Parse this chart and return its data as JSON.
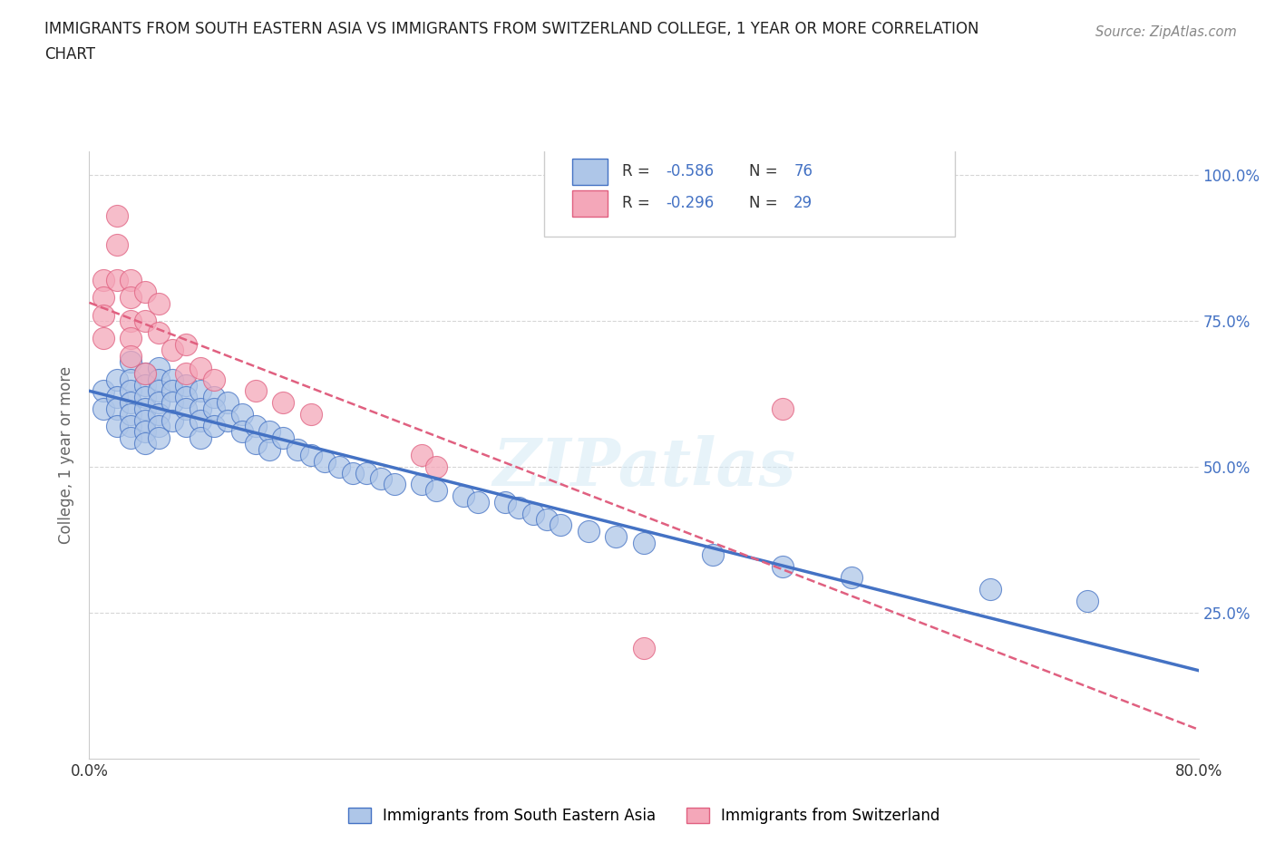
{
  "title_line1": "IMMIGRANTS FROM SOUTH EASTERN ASIA VS IMMIGRANTS FROM SWITZERLAND COLLEGE, 1 YEAR OR MORE CORRELATION",
  "title_line2": "CHART",
  "source_text": "Source: ZipAtlas.com",
  "ylabel": "College, 1 year or more",
  "xlim": [
    0.0,
    0.8
  ],
  "ylim": [
    0.0,
    1.04
  ],
  "blue_R": "-0.586",
  "blue_N": "76",
  "pink_R": "-0.296",
  "pink_N": "29",
  "legend_label_blue": "Immigrants from South Eastern Asia",
  "legend_label_pink": "Immigrants from Switzerland",
  "watermark": "ZIPatlas",
  "blue_color": "#aec6e8",
  "pink_color": "#f4a7b9",
  "blue_line_color": "#4472c4",
  "pink_line_color": "#e06080",
  "pink_line_dash": "dashed",
  "background_color": "#ffffff",
  "blue_scatter": {
    "x": [
      0.01,
      0.01,
      0.02,
      0.02,
      0.02,
      0.02,
      0.03,
      0.03,
      0.03,
      0.03,
      0.03,
      0.03,
      0.03,
      0.04,
      0.04,
      0.04,
      0.04,
      0.04,
      0.04,
      0.04,
      0.05,
      0.05,
      0.05,
      0.05,
      0.05,
      0.05,
      0.05,
      0.06,
      0.06,
      0.06,
      0.06,
      0.07,
      0.07,
      0.07,
      0.07,
      0.08,
      0.08,
      0.08,
      0.08,
      0.09,
      0.09,
      0.09,
      0.1,
      0.1,
      0.11,
      0.11,
      0.12,
      0.12,
      0.13,
      0.13,
      0.14,
      0.15,
      0.16,
      0.17,
      0.18,
      0.19,
      0.2,
      0.21,
      0.22,
      0.24,
      0.25,
      0.27,
      0.28,
      0.3,
      0.31,
      0.32,
      0.33,
      0.34,
      0.36,
      0.38,
      0.4,
      0.45,
      0.5,
      0.55,
      0.65,
      0.72
    ],
    "y": [
      0.63,
      0.6,
      0.65,
      0.62,
      0.6,
      0.57,
      0.68,
      0.65,
      0.63,
      0.61,
      0.59,
      0.57,
      0.55,
      0.66,
      0.64,
      0.62,
      0.6,
      0.58,
      0.56,
      0.54,
      0.67,
      0.65,
      0.63,
      0.61,
      0.59,
      0.57,
      0.55,
      0.65,
      0.63,
      0.61,
      0.58,
      0.64,
      0.62,
      0.6,
      0.57,
      0.63,
      0.6,
      0.58,
      0.55,
      0.62,
      0.6,
      0.57,
      0.61,
      0.58,
      0.59,
      0.56,
      0.57,
      0.54,
      0.56,
      0.53,
      0.55,
      0.53,
      0.52,
      0.51,
      0.5,
      0.49,
      0.49,
      0.48,
      0.47,
      0.47,
      0.46,
      0.45,
      0.44,
      0.44,
      0.43,
      0.42,
      0.41,
      0.4,
      0.39,
      0.38,
      0.37,
      0.35,
      0.33,
      0.31,
      0.29,
      0.27
    ]
  },
  "pink_scatter": {
    "x": [
      0.01,
      0.01,
      0.01,
      0.01,
      0.02,
      0.02,
      0.02,
      0.03,
      0.03,
      0.03,
      0.03,
      0.03,
      0.04,
      0.04,
      0.04,
      0.05,
      0.05,
      0.06,
      0.07,
      0.07,
      0.08,
      0.09,
      0.12,
      0.14,
      0.16,
      0.24,
      0.25,
      0.4,
      0.5
    ],
    "y": [
      0.82,
      0.79,
      0.76,
      0.72,
      0.93,
      0.88,
      0.82,
      0.82,
      0.79,
      0.75,
      0.72,
      0.69,
      0.8,
      0.75,
      0.66,
      0.78,
      0.73,
      0.7,
      0.71,
      0.66,
      0.67,
      0.65,
      0.63,
      0.61,
      0.59,
      0.52,
      0.5,
      0.19,
      0.6
    ]
  }
}
